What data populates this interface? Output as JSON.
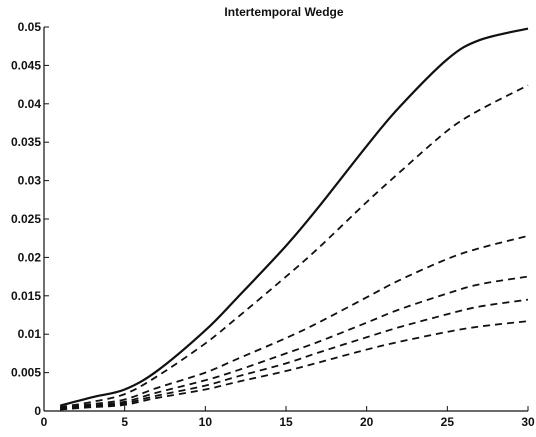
{
  "chart_data": {
    "type": "line",
    "title": "Intertemporal Wedge",
    "xlabel": "",
    "ylabel": "",
    "xlim": [
      0,
      30
    ],
    "ylim": [
      0,
      0.05
    ],
    "x_ticks": [
      0,
      5,
      10,
      15,
      20,
      25,
      30
    ],
    "y_ticks": [
      0,
      0.005,
      0.01,
      0.015,
      0.02,
      0.025,
      0.03,
      0.035,
      0.04,
      0.045,
      0.05
    ],
    "x_tick_labels": [
      "0",
      "5",
      "10",
      "15",
      "20",
      "25",
      "30"
    ],
    "y_tick_labels": [
      "0",
      "0.005",
      "0.01",
      "0.015",
      "0.02",
      "0.025",
      "0.03",
      "0.035",
      "0.04",
      "0.045",
      "0.05"
    ],
    "grid": false,
    "legend": "none",
    "x": [
      1,
      3,
      5,
      7,
      10,
      12,
      15,
      17,
      20,
      22,
      25,
      27,
      30
    ],
    "series": [
      {
        "style": "solid",
        "color": "#111111",
        "values": [
          0.0007,
          0.0018,
          0.0028,
          0.0052,
          0.0105,
          0.0148,
          0.0215,
          0.0265,
          0.0345,
          0.0395,
          0.0458,
          0.0483,
          0.0498
        ]
      },
      {
        "style": "dashed",
        "color": "#111111",
        "values": [
          0.0005,
          0.0012,
          0.0022,
          0.0045,
          0.0088,
          0.0122,
          0.0175,
          0.0212,
          0.0272,
          0.031,
          0.0365,
          0.0392,
          0.0424
        ]
      },
      {
        "style": "dashed",
        "color": "#111111",
        "values": [
          0.0004,
          0.0009,
          0.0015,
          0.003,
          0.005,
          0.0068,
          0.0095,
          0.0115,
          0.0148,
          0.017,
          0.0198,
          0.0212,
          0.0228
        ]
      },
      {
        "style": "dashed",
        "color": "#111111",
        "values": [
          0.0003,
          0.0007,
          0.0012,
          0.0024,
          0.004,
          0.0053,
          0.0075,
          0.009,
          0.0115,
          0.0132,
          0.0153,
          0.0165,
          0.0175
        ]
      },
      {
        "style": "dashed",
        "color": "#111111",
        "values": [
          0.0002,
          0.0006,
          0.001,
          0.002,
          0.0033,
          0.0045,
          0.0062,
          0.0076,
          0.0096,
          0.0109,
          0.0126,
          0.0136,
          0.0145
        ]
      },
      {
        "style": "dashed",
        "color": "#111111",
        "values": [
          0.0002,
          0.0005,
          0.0008,
          0.0017,
          0.0028,
          0.0038,
          0.0052,
          0.0063,
          0.008,
          0.009,
          0.0103,
          0.011,
          0.0117
        ]
      }
    ]
  }
}
